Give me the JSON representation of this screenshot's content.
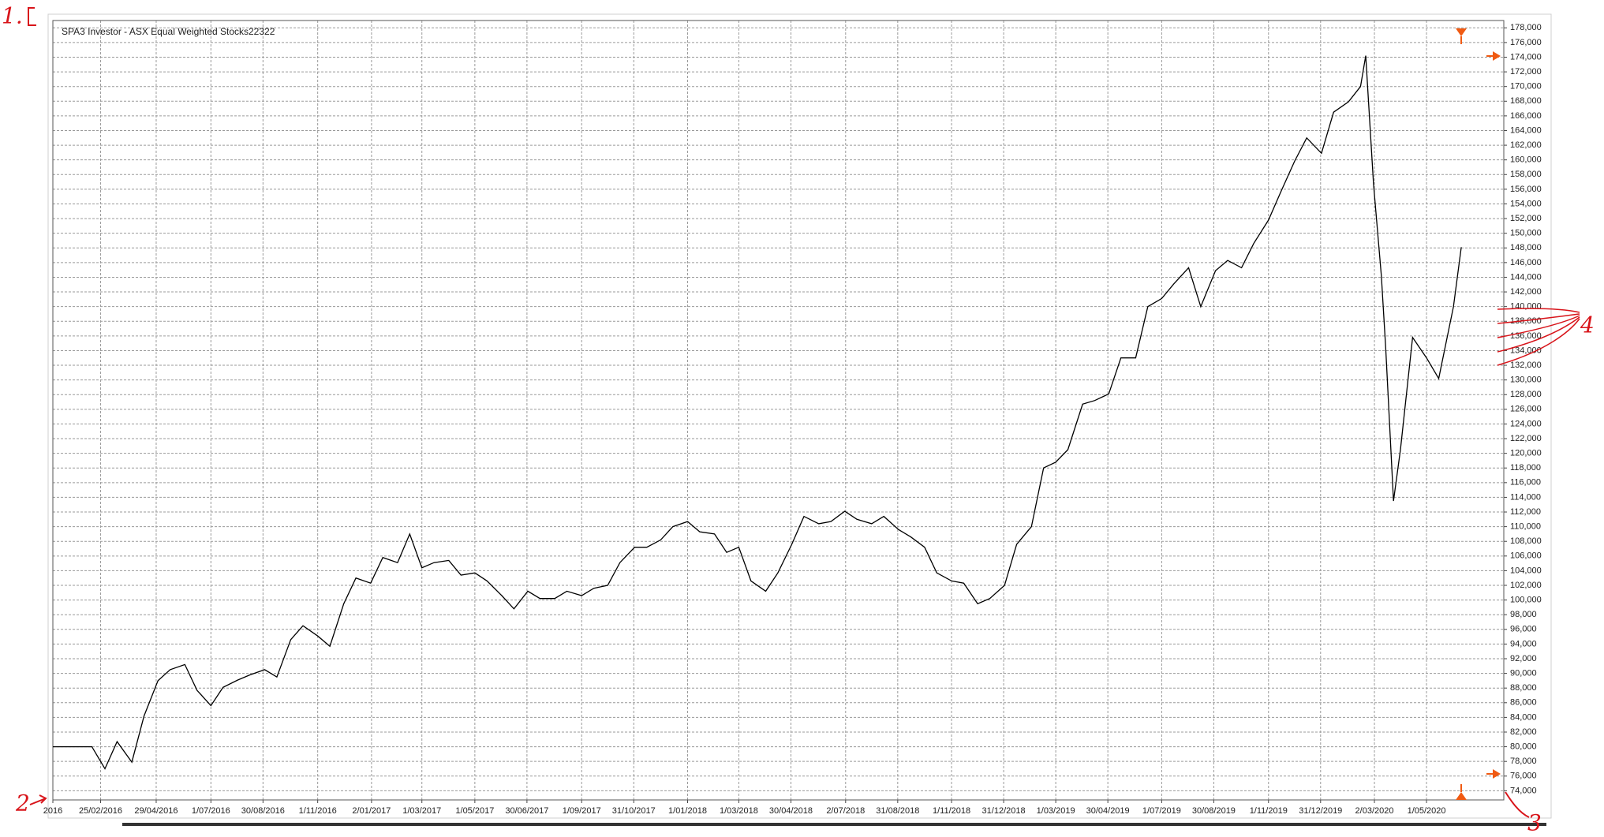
{
  "chart_data": {
    "type": "line",
    "title": "SPA3 Investor - ASX Equal Weighted Stocks22322",
    "color": "#000000",
    "grid": true,
    "y_axis_side": "right",
    "annotations": [
      "1.",
      "2",
      "3",
      "4"
    ],
    "xlim": [
      "2016-01-01",
      "2020-07-29"
    ],
    "ylim": [
      72750,
      179000
    ],
    "xticks": [
      {
        "value": "2016-01-01",
        "label": "2016"
      },
      {
        "value": "2016-02-25",
        "label": "25/02/2016"
      },
      {
        "value": "2016-04-29",
        "label": "29/04/2016"
      },
      {
        "value": "2016-07-01",
        "label": "1/07/2016"
      },
      {
        "value": "2016-08-30",
        "label": "30/08/2016"
      },
      {
        "value": "2016-11-01",
        "label": "1/11/2016"
      },
      {
        "value": "2017-01-02",
        "label": "2/01/2017"
      },
      {
        "value": "2017-03-01",
        "label": "1/03/2017"
      },
      {
        "value": "2017-05-01",
        "label": "1/05/2017"
      },
      {
        "value": "2017-06-30",
        "label": "30/06/2017"
      },
      {
        "value": "2017-09-01",
        "label": "1/09/2017"
      },
      {
        "value": "2017-10-31",
        "label": "31/10/2017"
      },
      {
        "value": "2018-01-01",
        "label": "1/01/2018"
      },
      {
        "value": "2018-03-01",
        "label": "1/03/2018"
      },
      {
        "value": "2018-04-30",
        "label": "30/04/2018"
      },
      {
        "value": "2018-07-02",
        "label": "2/07/2018"
      },
      {
        "value": "2018-08-31",
        "label": "31/08/2018"
      },
      {
        "value": "2018-11-01",
        "label": "1/11/2018"
      },
      {
        "value": "2018-12-31",
        "label": "31/12/2018"
      },
      {
        "value": "2019-03-01",
        "label": "1/03/2019"
      },
      {
        "value": "2019-04-30",
        "label": "30/04/2019"
      },
      {
        "value": "2019-07-01",
        "label": "1/07/2019"
      },
      {
        "value": "2019-08-30",
        "label": "30/08/2019"
      },
      {
        "value": "2019-11-01",
        "label": "1/11/2019"
      },
      {
        "value": "2019-12-31",
        "label": "31/12/2019"
      },
      {
        "value": "2020-03-02",
        "label": "2/03/2020"
      },
      {
        "value": "2020-05-01",
        "label": "1/05/2020"
      }
    ],
    "yticks": [
      {
        "value": 74000,
        "label": "74,000"
      },
      {
        "value": 76000,
        "label": "76,000"
      },
      {
        "value": 78000,
        "label": "78,000"
      },
      {
        "value": 80000,
        "label": "80,000"
      },
      {
        "value": 82000,
        "label": "82,000"
      },
      {
        "value": 84000,
        "label": "84,000"
      },
      {
        "value": 86000,
        "label": "86,000"
      },
      {
        "value": 88000,
        "label": "88,000"
      },
      {
        "value": 90000,
        "label": "90,000"
      },
      {
        "value": 92000,
        "label": "92,000"
      },
      {
        "value": 94000,
        "label": "94,000"
      },
      {
        "value": 96000,
        "label": "96,000"
      },
      {
        "value": 98000,
        "label": "98,000"
      },
      {
        "value": 100000,
        "label": "100,000"
      },
      {
        "value": 102000,
        "label": "102,000"
      },
      {
        "value": 104000,
        "label": "104,000"
      },
      {
        "value": 106000,
        "label": "106,000"
      },
      {
        "value": 108000,
        "label": "108,000"
      },
      {
        "value": 110000,
        "label": "110,000"
      },
      {
        "value": 112000,
        "label": "112,000"
      },
      {
        "value": 114000,
        "label": "114,000"
      },
      {
        "value": 116000,
        "label": "116,000"
      },
      {
        "value": 118000,
        "label": "118,000"
      },
      {
        "value": 120000,
        "label": "120,000"
      },
      {
        "value": 122000,
        "label": "122,000"
      },
      {
        "value": 124000,
        "label": "124,000"
      },
      {
        "value": 126000,
        "label": "126,000"
      },
      {
        "value": 128000,
        "label": "128,000"
      },
      {
        "value": 130000,
        "label": "130,000"
      },
      {
        "value": 132000,
        "label": "132,000"
      },
      {
        "value": 134000,
        "label": "134,000"
      },
      {
        "value": 136000,
        "label": "136,000"
      },
      {
        "value": 138000,
        "label": "138,000"
      },
      {
        "value": 140000,
        "label": "140,000"
      },
      {
        "value": 142000,
        "label": "142,000"
      },
      {
        "value": 144000,
        "label": "144,000"
      },
      {
        "value": 146000,
        "label": "146,000"
      },
      {
        "value": 148000,
        "label": "148,000"
      },
      {
        "value": 150000,
        "label": "150,000"
      },
      {
        "value": 152000,
        "label": "152,000"
      },
      {
        "value": 154000,
        "label": "154,000"
      },
      {
        "value": 156000,
        "label": "156,000"
      },
      {
        "value": 158000,
        "label": "158,000"
      },
      {
        "value": 160000,
        "label": "160,000"
      },
      {
        "value": 162000,
        "label": "162,000"
      },
      {
        "value": 164000,
        "label": "164,000"
      },
      {
        "value": 166000,
        "label": "166,000"
      },
      {
        "value": 168000,
        "label": "168,000"
      },
      {
        "value": 170000,
        "label": "170,000"
      },
      {
        "value": 172000,
        "label": "172,000"
      },
      {
        "value": 174000,
        "label": "174,000"
      },
      {
        "value": 176000,
        "label": "176,000"
      },
      {
        "value": 178000,
        "label": "178,000"
      }
    ],
    "x": [
      "2016-01-01",
      "2016-01-15",
      "2016-02-01",
      "2016-02-15",
      "2016-03-01",
      "2016-03-15",
      "2016-04-01",
      "2016-04-15",
      "2016-05-01",
      "2016-05-15",
      "2016-06-01",
      "2016-06-15",
      "2016-07-01",
      "2016-07-15",
      "2016-08-01",
      "2016-08-15",
      "2016-09-01",
      "2016-09-15",
      "2016-10-01",
      "2016-10-15",
      "2016-11-01",
      "2016-11-15",
      "2016-12-01",
      "2016-12-15",
      "2017-01-01",
      "2017-01-15",
      "2017-02-01",
      "2017-02-15",
      "2017-03-01",
      "2017-03-15",
      "2017-04-01",
      "2017-04-15",
      "2017-05-01",
      "2017-05-15",
      "2017-06-01",
      "2017-06-15",
      "2017-07-01",
      "2017-07-15",
      "2017-08-01",
      "2017-08-15",
      "2017-09-01",
      "2017-09-15",
      "2017-10-01",
      "2017-10-15",
      "2017-11-01",
      "2017-11-15",
      "2017-12-01",
      "2017-12-15",
      "2018-01-01",
      "2018-01-15",
      "2018-02-01",
      "2018-02-15",
      "2018-03-01",
      "2018-03-15",
      "2018-04-01",
      "2018-04-15",
      "2018-05-01",
      "2018-05-15",
      "2018-06-01",
      "2018-06-15",
      "2018-07-01",
      "2018-07-15",
      "2018-08-01",
      "2018-08-15",
      "2018-09-01",
      "2018-09-15",
      "2018-10-01",
      "2018-10-15",
      "2018-11-01",
      "2018-11-15",
      "2018-12-01",
      "2018-12-15",
      "2019-01-01",
      "2019-01-15",
      "2019-02-01",
      "2019-02-15",
      "2019-03-01",
      "2019-03-15",
      "2019-04-01",
      "2019-04-15",
      "2019-05-01",
      "2019-05-15",
      "2019-06-01",
      "2019-06-15",
      "2019-07-01",
      "2019-07-15",
      "2019-08-01",
      "2019-08-15",
      "2019-09-01",
      "2019-09-15",
      "2019-10-01",
      "2019-10-15",
      "2019-11-01",
      "2019-11-15",
      "2019-12-01",
      "2019-12-15",
      "2020-01-01",
      "2020-01-15",
      "2020-02-01",
      "2020-02-15",
      "2020-02-21",
      "2020-03-01",
      "2020-03-10",
      "2020-03-15",
      "2020-03-24",
      "2020-04-01",
      "2020-04-15",
      "2020-05-01",
      "2020-05-15",
      "2020-06-01",
      "2020-06-10"
    ],
    "values": [
      80000,
      80000,
      80000,
      80000,
      77000,
      80700,
      77900,
      84200,
      89000,
      90500,
      91200,
      87700,
      85600,
      88100,
      89100,
      89800,
      90500,
      89500,
      94600,
      96500,
      95100,
      93700,
      99500,
      103000,
      102300,
      105800,
      105100,
      109000,
      104400,
      105100,
      105400,
      103400,
      103700,
      102600,
      100600,
      98800,
      101200,
      100200,
      100200,
      101200,
      100600,
      101600,
      102000,
      105100,
      107200,
      107200,
      108200,
      110000,
      110700,
      109300,
      109000,
      106500,
      107200,
      102600,
      101200,
      103700,
      107600,
      111400,
      110400,
      110700,
      112100,
      111000,
      110400,
      111400,
      109600,
      108600,
      107200,
      103700,
      102600,
      102300,
      99500,
      100200,
      102000,
      107600,
      110000,
      118000,
      118800,
      120500,
      126700,
      127200,
      128100,
      133000,
      133000,
      140000,
      141100,
      143100,
      145300,
      140000,
      144900,
      146300,
      145300,
      148600,
      151800,
      155600,
      159800,
      163000,
      160900,
      166500,
      167900,
      170000,
      174200,
      156700,
      144200,
      134400,
      113500,
      120500,
      135800,
      133000,
      130200,
      140000,
      148100
    ]
  }
}
